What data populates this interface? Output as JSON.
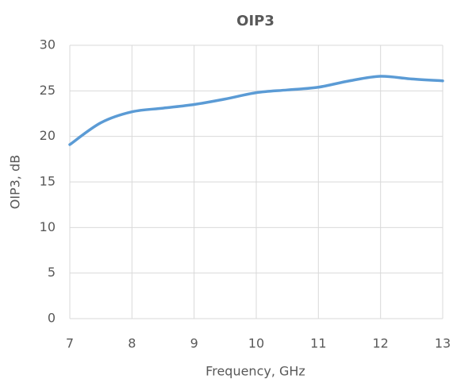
{
  "chart_data": {
    "type": "line",
    "title": "OIP3",
    "x_label": "Frequency, GHz",
    "y_label": "OIP3, dB",
    "x": [
      7,
      7.5,
      8,
      8.5,
      9,
      9.5,
      10,
      10.5,
      11,
      11.5,
      12,
      12.5,
      13
    ],
    "series": [
      {
        "name": "OIP3",
        "color": "#5b9bd5",
        "values": [
          19.1,
          21.5,
          22.7,
          23.1,
          23.5,
          24.1,
          24.8,
          25.1,
          25.4,
          26.1,
          26.6,
          26.3,
          26.1
        ]
      }
    ],
    "xlim": [
      7,
      13
    ],
    "xticks": [
      7,
      8,
      9,
      10,
      11,
      12,
      13
    ],
    "ylim": [
      0,
      30
    ],
    "yticks": [
      0,
      5,
      10,
      15,
      20,
      25,
      30
    ],
    "grid": true
  }
}
